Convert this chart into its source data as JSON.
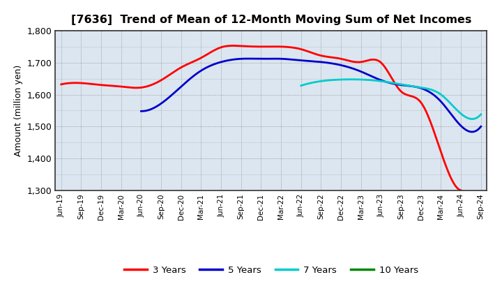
{
  "title": "[7636]  Trend of Mean of 12-Month Moving Sum of Net Incomes",
  "ylabel": "Amount (million yen)",
  "ylim": [
    1300,
    1800
  ],
  "yticks": [
    1300,
    1400,
    1500,
    1600,
    1700,
    1800
  ],
  "background_color": "#ffffff",
  "plot_bg_color": "#dce6f0",
  "x_labels": [
    "Jun-19",
    "Sep-19",
    "Dec-19",
    "Mar-20",
    "Jun-20",
    "Sep-20",
    "Dec-20",
    "Mar-21",
    "Jun-21",
    "Sep-21",
    "Dec-21",
    "Mar-22",
    "Jun-22",
    "Sep-22",
    "Dec-22",
    "Mar-23",
    "Jun-23",
    "Sep-23",
    "Dec-23",
    "Mar-24",
    "Jun-24",
    "Sep-24"
  ],
  "series": [
    {
      "name": "3 Years",
      "color": "#ff0000",
      "data_x": [
        0,
        1,
        2,
        3,
        4,
        5,
        6,
        7,
        8,
        9,
        10,
        11,
        12,
        13,
        14,
        15,
        16,
        17,
        18,
        19,
        20
      ],
      "data_y": [
        1632,
        1636,
        1630,
        1625,
        1622,
        1645,
        1685,
        1715,
        1748,
        1752,
        1750,
        1750,
        1742,
        1722,
        1712,
        1702,
        1700,
        1610,
        1575,
        1420,
        1300
      ]
    },
    {
      "name": "5 Years",
      "color": "#0000cc",
      "data_x": [
        4,
        5,
        6,
        7,
        8,
        9,
        10,
        11,
        12,
        13,
        14,
        15,
        16,
        17,
        18,
        19,
        20,
        21
      ],
      "data_y": [
        1548,
        1572,
        1625,
        1675,
        1702,
        1712,
        1712,
        1712,
        1707,
        1702,
        1692,
        1672,
        1645,
        1630,
        1620,
        1578,
        1502,
        1500
      ]
    },
    {
      "name": "7 Years",
      "color": "#00cccc",
      "data_x": [
        12,
        13,
        14,
        15,
        16,
        17,
        18,
        19,
        20,
        21
      ],
      "data_y": [
        1628,
        1642,
        1647,
        1647,
        1642,
        1632,
        1622,
        1600,
        1540,
        1538
      ]
    },
    {
      "name": "10 Years",
      "color": "#008800",
      "data_x": [],
      "data_y": []
    }
  ],
  "legend_entries": [
    {
      "name": "3 Years",
      "color": "#ff0000"
    },
    {
      "name": "5 Years",
      "color": "#0000cc"
    },
    {
      "name": "7 Years",
      "color": "#00cccc"
    },
    {
      "name": "10 Years",
      "color": "#008800"
    }
  ]
}
